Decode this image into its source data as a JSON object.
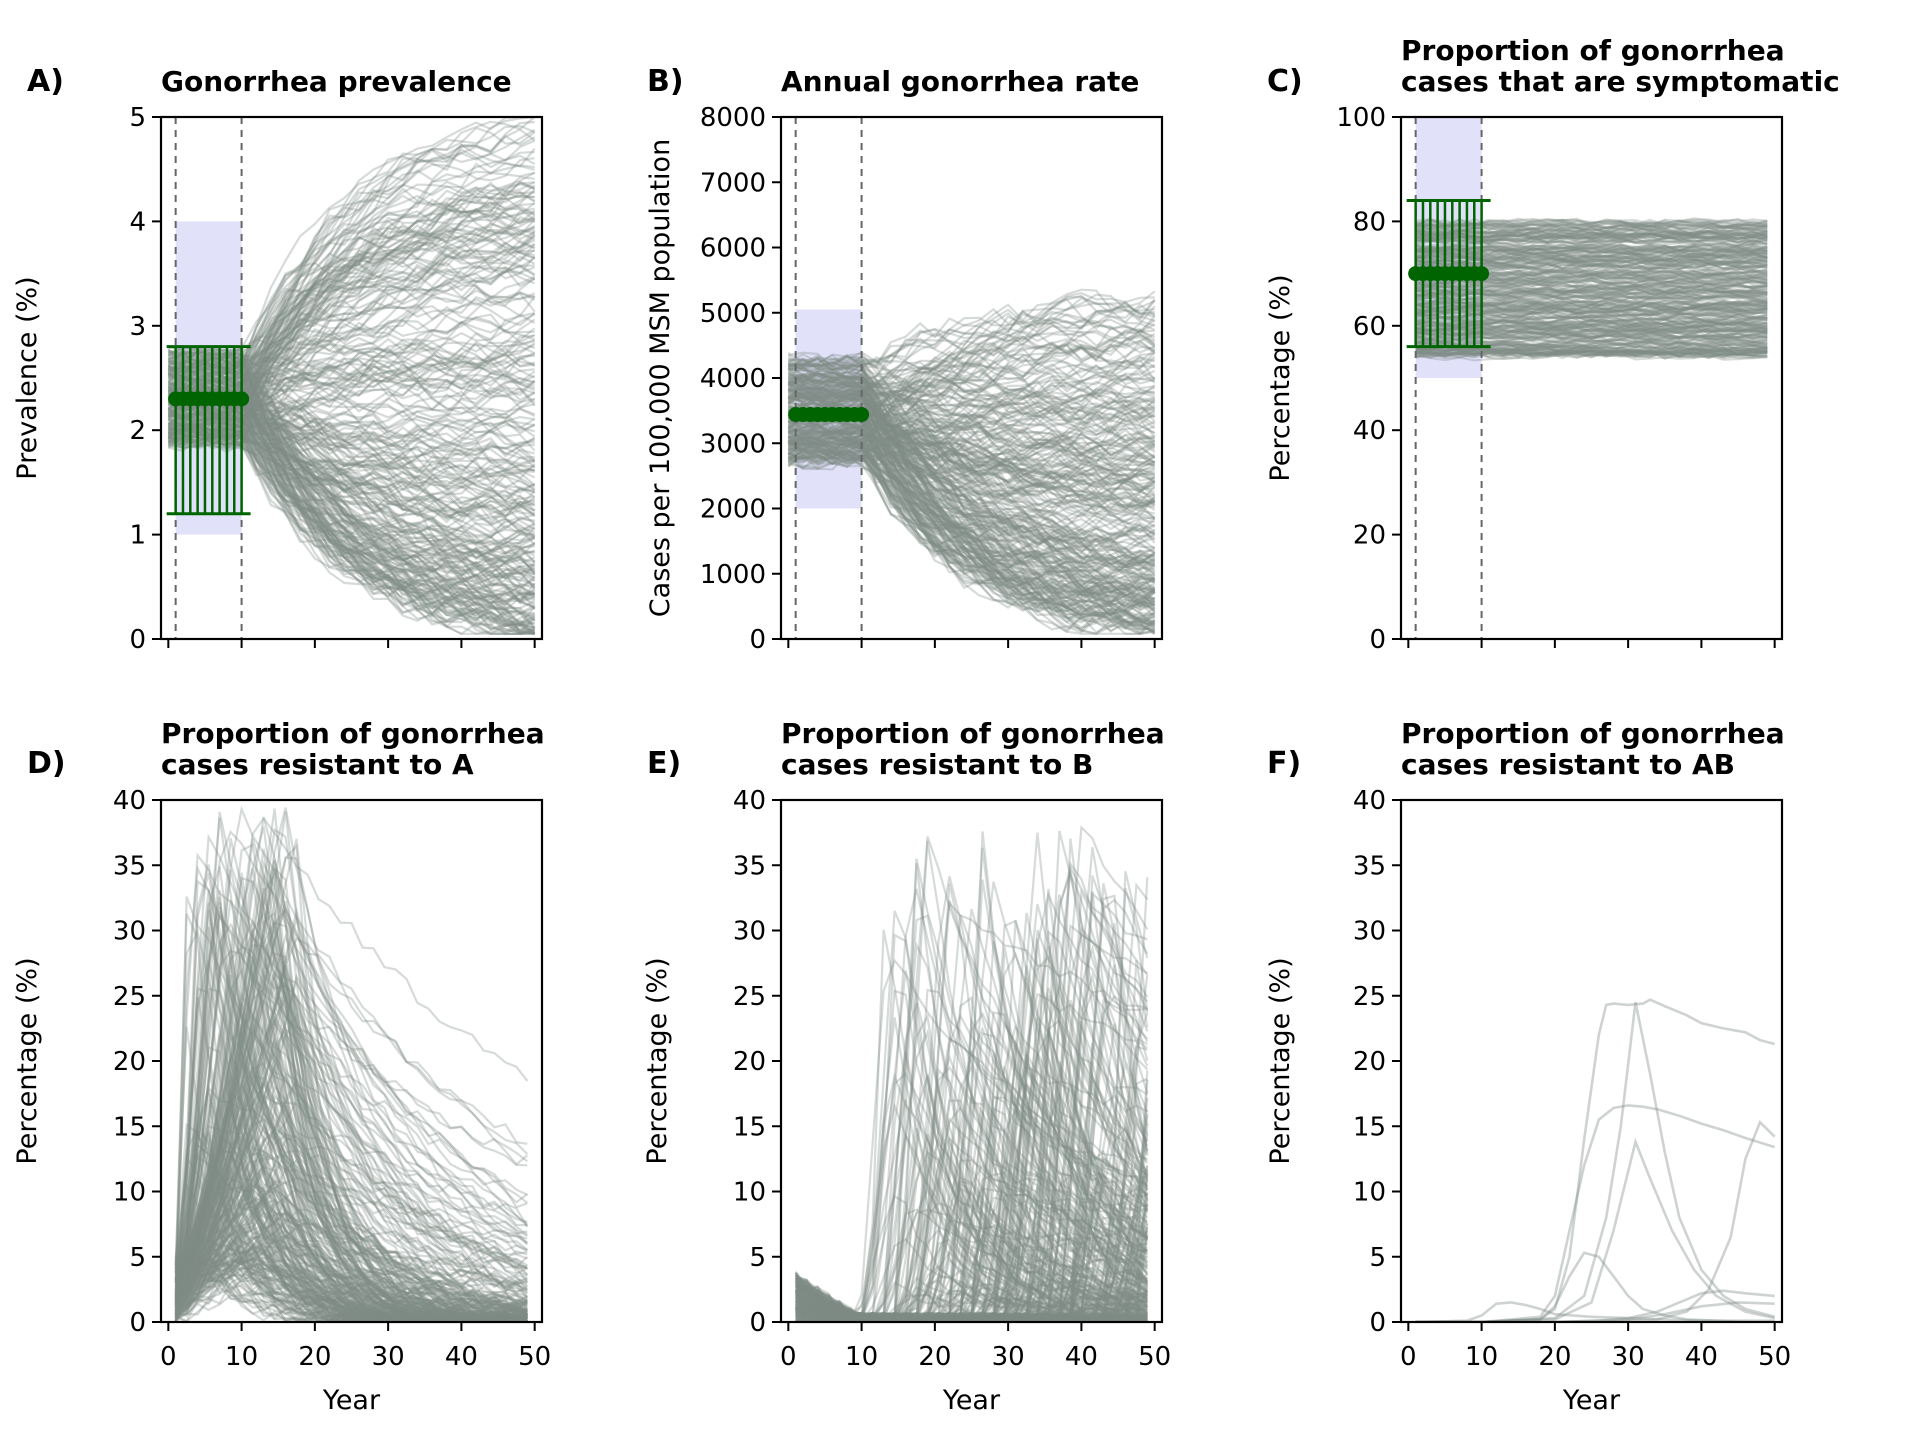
{
  "colors": {
    "trajectory": "#7f8c86",
    "target_marker": "#006400",
    "target_band": "#c9c9f5",
    "guide_line": "#666666",
    "axis": "#000000"
  },
  "chart_data": [
    {
      "type": "line",
      "letter": "A)",
      "title": [
        "Gonorrhea prevalence"
      ],
      "xlabel": "",
      "ylabel": "Prevalence (%)",
      "xlim": [
        -1,
        51
      ],
      "ylim": [
        0,
        5
      ],
      "xticks": [
        0,
        10,
        20,
        30,
        40,
        50
      ],
      "xtick_labels_shown": false,
      "yticks": [
        0,
        1,
        2,
        3,
        4,
        5
      ],
      "ytick_labels": [
        "0",
        "1",
        "2",
        "3",
        "4",
        "5"
      ],
      "guide_lines_x": [
        1,
        10
      ],
      "target_band": {
        "x": [
          1,
          10
        ],
        "y": [
          1.0,
          4.0
        ]
      },
      "target": {
        "x": [
          1,
          2,
          3,
          4,
          5,
          6,
          7,
          8,
          9,
          10
        ],
        "value": 2.3,
        "lower": 1.2,
        "upper": 2.8
      },
      "trajectories": {
        "count": 300,
        "x_range": [
          0,
          50
        ],
        "initial_range": [
          1.85,
          2.75
        ],
        "end_range": [
          0.05,
          5.0
        ],
        "pattern": "flat then diverge with mostly decline"
      }
    },
    {
      "type": "line",
      "letter": "B)",
      "title": [
        "Annual gonorrhea rate"
      ],
      "xlabel": "",
      "ylabel": "Cases per 100,000 MSM population",
      "xlim": [
        -1,
        51
      ],
      "ylim": [
        0,
        8000
      ],
      "xticks": [
        0,
        10,
        20,
        30,
        40,
        50
      ],
      "xtick_labels_shown": false,
      "yticks": [
        0,
        1000,
        2000,
        3000,
        4000,
        5000,
        6000,
        7000,
        8000
      ],
      "ytick_labels": [
        "0",
        "1000",
        "2000",
        "3000",
        "4000",
        "5000",
        "6000",
        "7000",
        "8000"
      ],
      "guide_lines_x": [
        1,
        10
      ],
      "target_band": {
        "x": [
          1,
          10
        ],
        "y": [
          2000,
          5050
        ]
      },
      "target": {
        "x": [
          1,
          2,
          3,
          4,
          5,
          6,
          7,
          8,
          9,
          10
        ],
        "value": 3440,
        "lower": 3440,
        "upper": 3440
      },
      "trajectories": {
        "count": 300,
        "x_range": [
          0,
          50
        ],
        "initial_range": [
          2700,
          4300
        ],
        "end_range": [
          150,
          5300
        ],
        "pattern": "flat then diverge with mostly decline"
      }
    },
    {
      "type": "line",
      "letter": "C)",
      "title": [
        "Proportion of gonorrhea",
        "cases that are symptomatic"
      ],
      "xlabel": "",
      "ylabel": "Percentage (%)",
      "xlim": [
        -1,
        51
      ],
      "ylim": [
        0,
        100
      ],
      "xticks": [
        0,
        10,
        20,
        30,
        40,
        50
      ],
      "xtick_labels_shown": false,
      "yticks": [
        0,
        20,
        40,
        60,
        80,
        100
      ],
      "ytick_labels": [
        "0",
        "20",
        "40",
        "60",
        "80",
        "100"
      ],
      "guide_lines_x": [
        1,
        10
      ],
      "target_band": {
        "x": [
          1,
          10
        ],
        "y": [
          50,
          100
        ]
      },
      "target": {
        "x": [
          1,
          2,
          3,
          4,
          5,
          6,
          7,
          8,
          9,
          10
        ],
        "value": 70,
        "lower": 56,
        "upper": 84
      },
      "trajectories": {
        "count": 300,
        "x_range": [
          1,
          50
        ],
        "initial_range": [
          52,
          82
        ],
        "end_range": [
          52,
          82
        ],
        "pattern": "flat band"
      }
    },
    {
      "type": "line",
      "letter": "D)",
      "title": [
        "Proportion of gonorrhea",
        "cases resistant to A"
      ],
      "xlabel": "Year",
      "ylabel": "Percentage (%)",
      "xlim": [
        -1,
        51
      ],
      "ylim": [
        0,
        40
      ],
      "xticks": [
        0,
        10,
        20,
        30,
        40,
        50
      ],
      "xtick_labels_shown": true,
      "xtick_labels": [
        "0",
        "10",
        "20",
        "30",
        "40",
        "50"
      ],
      "yticks": [
        0,
        5,
        10,
        15,
        20,
        25,
        30,
        35,
        40
      ],
      "ytick_labels": [
        "0",
        "5",
        "10",
        "15",
        "20",
        "25",
        "30",
        "35",
        "40"
      ],
      "trajectories": {
        "count": 300,
        "x_range": [
          1,
          50
        ],
        "peak_year_range": [
          2,
          18
        ],
        "peak_range": [
          4,
          40
        ],
        "pattern": "early rise then decline"
      }
    },
    {
      "type": "line",
      "letter": "E)",
      "title": [
        "Proportion of gonorrhea",
        "cases resistant to B"
      ],
      "xlabel": "Year",
      "ylabel": "Percentage (%)",
      "xlim": [
        -1,
        51
      ],
      "ylim": [
        0,
        40
      ],
      "xticks": [
        0,
        10,
        20,
        30,
        40,
        50
      ],
      "xtick_labels_shown": true,
      "xtick_labels": [
        "0",
        "10",
        "20",
        "30",
        "40",
        "50"
      ],
      "yticks": [
        0,
        5,
        10,
        15,
        20,
        25,
        30,
        35,
        40
      ],
      "ytick_labels": [
        "0",
        "5",
        "10",
        "15",
        "20",
        "25",
        "30",
        "35",
        "40"
      ],
      "trajectories": {
        "count": 300,
        "x_range": [
          1,
          50
        ],
        "peak_year_range": [
          10,
          50
        ],
        "peak_range": [
          2,
          39
        ],
        "pattern": "low until year 10 then rise and decline"
      }
    },
    {
      "type": "line",
      "letter": "F)",
      "title": [
        "Proportion of gonorrhea",
        "cases resistant to AB"
      ],
      "xlabel": "Year",
      "ylabel": "Percentage (%)",
      "xlim": [
        -1,
        51
      ],
      "ylim": [
        0,
        40
      ],
      "xticks": [
        0,
        10,
        20,
        30,
        40,
        50
      ],
      "xtick_labels_shown": true,
      "xtick_labels": [
        "0",
        "10",
        "20",
        "30",
        "40",
        "50"
      ],
      "yticks": [
        0,
        5,
        10,
        15,
        20,
        25,
        30,
        35,
        40
      ],
      "ytick_labels": [
        "0",
        "5",
        "10",
        "15",
        "20",
        "25",
        "30",
        "35",
        "40"
      ],
      "series": [
        {
          "x": [
            1,
            10,
            18,
            20,
            22,
            24,
            26,
            27,
            28,
            30,
            32,
            33,
            35,
            38,
            40,
            43,
            46,
            48,
            50
          ],
          "values": [
            0,
            0,
            0.2,
            1,
            5,
            14,
            22,
            24.3,
            24.4,
            24.3,
            24.4,
            24.7,
            24.2,
            23.5,
            22.9,
            22.5,
            22.2,
            21.6,
            21.3
          ]
        },
        {
          "x": [
            1,
            10,
            18,
            20,
            22,
            24,
            26,
            28,
            30,
            32,
            34,
            37,
            40,
            43,
            46,
            50
          ],
          "values": [
            0,
            0,
            0.4,
            2,
            7,
            12,
            15.5,
            16.4,
            16.6,
            16.5,
            16.3,
            15.8,
            15.2,
            14.7,
            14.1,
            13.4
          ]
        },
        {
          "x": [
            1,
            10,
            20,
            24,
            27,
            29,
            31,
            33,
            35,
            37,
            40,
            43,
            46,
            50
          ],
          "values": [
            0,
            0,
            0.3,
            2,
            8,
            15,
            24.5,
            19,
            13,
            8,
            4,
            2,
            1,
            0.4
          ]
        },
        {
          "x": [
            1,
            10,
            20,
            25,
            28,
            31,
            33,
            36,
            39,
            42,
            46,
            50
          ],
          "values": [
            0,
            0,
            0.2,
            1.5,
            7,
            13.8,
            11,
            7,
            4,
            2,
            0.8,
            0.3
          ]
        },
        {
          "x": [
            1,
            10,
            18,
            20,
            22,
            24,
            26,
            28,
            30,
            32,
            35,
            38,
            42,
            46,
            50
          ],
          "values": [
            0,
            0,
            0.2,
            1.2,
            3.5,
            5.3,
            5,
            3.5,
            2,
            1,
            0.5,
            0.2,
            0.1,
            0,
            0
          ]
        },
        {
          "x": [
            1,
            10,
            20,
            26,
            30,
            34,
            38,
            41,
            44,
            46,
            48,
            50
          ],
          "values": [
            0,
            0,
            0,
            0,
            0.1,
            0.2,
            0.8,
            2.5,
            6.5,
            12.5,
            15.3,
            14.2
          ]
        },
        {
          "x": [
            1,
            10,
            20,
            26,
            30,
            34,
            37,
            40,
            43,
            46,
            50
          ],
          "values": [
            0,
            0,
            0,
            0.1,
            0.3,
            0.8,
            1.5,
            2.2,
            2.4,
            2.2,
            2
          ]
        },
        {
          "x": [
            1,
            8,
            10,
            12,
            14,
            16,
            18,
            20,
            25,
            30,
            35,
            40,
            45,
            50
          ],
          "values": [
            0,
            0.1,
            0.5,
            1.4,
            1.5,
            1.3,
            1,
            0.6,
            0.4,
            0.3,
            0.2,
            0.1,
            0.1,
            0.1
          ]
        },
        {
          "x": [
            1,
            10,
            20,
            30,
            35,
            40,
            45,
            50
          ],
          "values": [
            0,
            0,
            0,
            0.2,
            0.6,
            1.2,
            1.5,
            1.4
          ]
        }
      ]
    }
  ]
}
